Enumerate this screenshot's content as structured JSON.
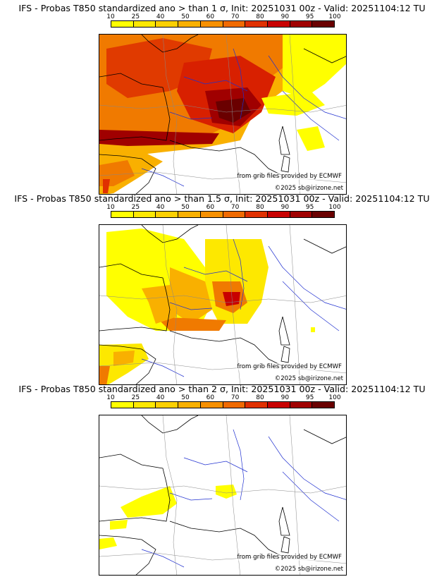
{
  "colorbar": {
    "ticks": [
      "10",
      "25",
      "40",
      "50",
      "60",
      "70",
      "80",
      "90",
      "95",
      "100"
    ],
    "colors": [
      "#ffff00",
      "#fde800",
      "#fcd000",
      "#f9b000",
      "#f79000",
      "#f06a00",
      "#e03000",
      "#c80000",
      "#a00000",
      "#6a0000"
    ]
  },
  "panels": [
    {
      "title": "IFS - Probas T850  standardized ano > than 1 σ, Init: 20251031 00z - Valid: 20251104:12 TU",
      "threshold_sigma": 1,
      "credit_line1": "from grib files provided by ECMWF",
      "credit_line2": "©2025 sb@irizone.net"
    },
    {
      "title": "IFS - Probas T850  standardized ano > than 1.5 σ, Init: 20251031 00z - Valid: 20251104:12 TU",
      "threshold_sigma": 1.5,
      "credit_line1": "from grib files provided by ECMWF",
      "credit_line2": "©2025 sb@irizone.net"
    },
    {
      "title": "IFS - Probas T850  standardized ano > than 2 σ, Init: 20251031 00z - Valid: 20251104:12 TU",
      "threshold_sigma": 2,
      "credit_line1": "from grib files provided by ECMWF",
      "credit_line2": "©2025 sb@irizone.net"
    }
  ]
}
